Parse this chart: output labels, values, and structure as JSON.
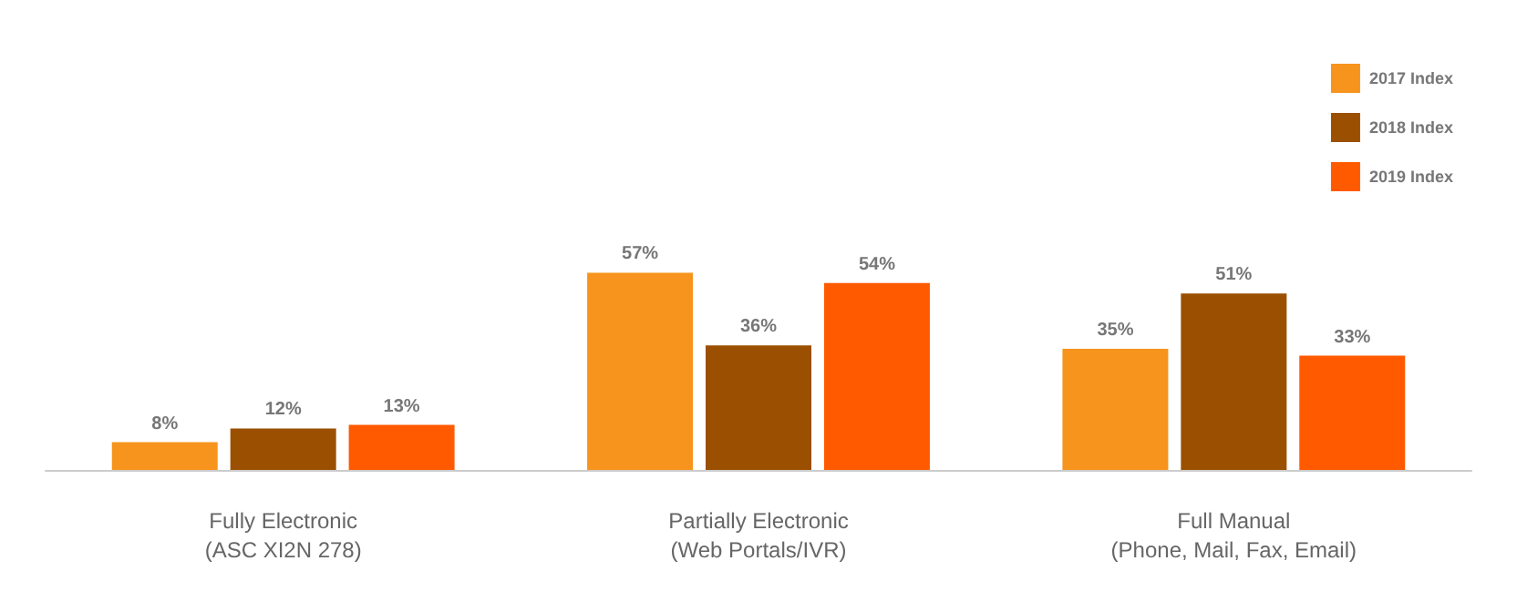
{
  "chart_data": {
    "type": "bar",
    "categories": [
      "Fully Electronic\n(ASC XI2N 278)",
      "Partially Electronic\n(Web Portals/IVR)",
      "Full Manual\n(Phone, Mail, Fax, Email)"
    ],
    "series": [
      {
        "name": "2017 Index",
        "color": "#f7941d",
        "values": [
          8,
          57,
          35
        ],
        "value_labels": [
          "8%",
          "57%",
          "35%"
        ]
      },
      {
        "name": "2018 Index",
        "color": "#9a5000",
        "values": [
          12,
          36,
          51
        ],
        "value_labels": [
          "12%",
          "36%",
          "51%"
        ]
      },
      {
        "name": "2019 Index",
        "color": "#ff5a00",
        "values": [
          13,
          54,
          33
        ],
        "value_labels": [
          "13%",
          "54%",
          "33%"
        ]
      }
    ],
    "legend": "top right"
  }
}
